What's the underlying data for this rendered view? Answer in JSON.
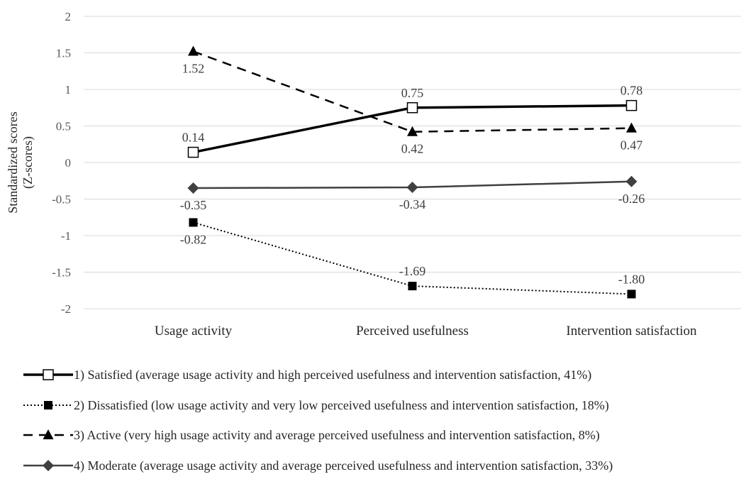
{
  "chart_data": {
    "type": "line",
    "title": "",
    "xlabel": "",
    "ylabel_lines": [
      "Standardized scores",
      "(Z-scores)"
    ],
    "categories": [
      "Usage activity",
      "Perceived usefulness",
      "Intervention satisfaction"
    ],
    "ylim": [
      -2,
      2
    ],
    "yticks": [
      2,
      1.5,
      1,
      0.5,
      0,
      -0.5,
      -1,
      -1.5,
      -2
    ],
    "grid": true,
    "legend_position": "bottom",
    "series": [
      {
        "name": "1) Satisfied (average usage activity and high perceived usefulness and intervention satisfaction, 41%)",
        "values": [
          0.14,
          0.75,
          0.78
        ],
        "labels": [
          "0.14",
          "0.75",
          "0.78"
        ],
        "label_pos": [
          "above",
          "above",
          "above"
        ],
        "marker": "square-open",
        "line": "solid-thick",
        "color": "#000000"
      },
      {
        "name": "2) Dissatisfied (low usage activity and very low perceived usefulness and intervention satisfaction, 18%)",
        "values": [
          -0.82,
          -1.69,
          -1.8
        ],
        "labels": [
          "-0.82",
          "-1.69",
          "-1.80"
        ],
        "label_pos": [
          "below",
          "above",
          "above"
        ],
        "marker": "square-filled",
        "line": "dotted",
        "color": "#000000"
      },
      {
        "name": "3) Active (very high usage activity and average perceived usefulness and intervention satisfaction, 8%)",
        "values": [
          1.52,
          0.42,
          0.47
        ],
        "labels": [
          "1.52",
          "0.42",
          "0.47"
        ],
        "label_pos": [
          "below",
          "below",
          "below"
        ],
        "marker": "triangle",
        "line": "dashed",
        "color": "#000000"
      },
      {
        "name": "4) Moderate (average usage activity and average perceived usefulness and intervention satisfaction, 33%)",
        "values": [
          -0.35,
          -0.34,
          -0.26
        ],
        "labels": [
          "-0.35",
          "-0.34",
          "-0.26"
        ],
        "label_pos": [
          "below",
          "below",
          "below"
        ],
        "marker": "diamond",
        "line": "solid",
        "color": "#404040"
      }
    ]
  }
}
